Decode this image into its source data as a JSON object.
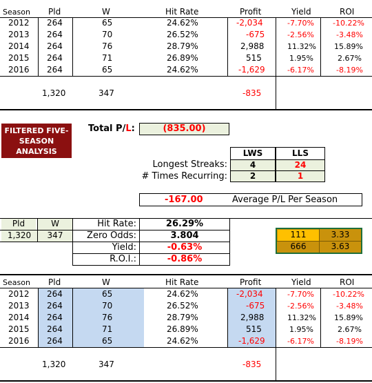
{
  "columns": [
    "Season",
    "Pld",
    "W",
    "Hit Rate",
    "Profit",
    "Yield",
    "ROI"
  ],
  "seasons": [
    {
      "season": "2012",
      "pld": "264",
      "w": "65",
      "hit_rate": "24.62%",
      "profit": "-2,034",
      "yield": "-7.70%",
      "roi": "-10.22%"
    },
    {
      "season": "2013",
      "pld": "264",
      "w": "70",
      "hit_rate": "26.52%",
      "profit": "-675",
      "yield": "-2.56%",
      "roi": "-3.48%"
    },
    {
      "season": "2014",
      "pld": "264",
      "w": "76",
      "hit_rate": "28.79%",
      "profit": "2,988",
      "yield": "11.32%",
      "roi": "15.89%"
    },
    {
      "season": "2015",
      "pld": "264",
      "w": "71",
      "hit_rate": "26.89%",
      "profit": "515",
      "yield": "1.95%",
      "roi": "2.67%"
    },
    {
      "season": "2016",
      "pld": "264",
      "w": "65",
      "hit_rate": "24.62%",
      "profit": "-1,629",
      "yield": "-6.17%",
      "roi": "-8.19%"
    }
  ],
  "totals": {
    "pld": "1,320",
    "w": "347",
    "profit": "-835"
  },
  "analysis_button": "FILTERED FIVE-SEASON ANALYSIS",
  "total_pl": {
    "label_prefix": "Total P/",
    "label_l": "L",
    "label_colon": ":",
    "value": "(835.00)"
  },
  "streaks": {
    "col_lws": "LWS",
    "col_lls": "LLS",
    "longest_label": "Longest Streaks:",
    "longest_lws": "4",
    "longest_lls": "24",
    "recurring_label": "# Times Recurring:",
    "recurring_lws": "2",
    "recurring_lls": "1"
  },
  "avg_pl": {
    "value": "-167.00",
    "label": "Average P/L Per Season"
  },
  "summary": {
    "pld_label": "Pld",
    "w_label": "W",
    "pld": "1,320",
    "w": "347",
    "hit_rate_label": "Hit Rate:",
    "hit_rate": "26.29%",
    "zero_odds_label": "Zero Odds:",
    "zero_odds": "3.804",
    "yield_label": "Yield:",
    "yield": "-0.63%",
    "roi_label": "R.O.I.:",
    "roi": "-0.86%"
  },
  "odds_box": {
    "r1a": "111",
    "r1b": "3.33",
    "r2a": "666",
    "r2b": "3.63"
  },
  "colors": {
    "dark_red": "#8b1010",
    "light_green": "#ebf1de",
    "gold": "#c9920c",
    "yellow": "#ffc000",
    "blue": "#c5d9f1",
    "red": "#ff0000"
  }
}
